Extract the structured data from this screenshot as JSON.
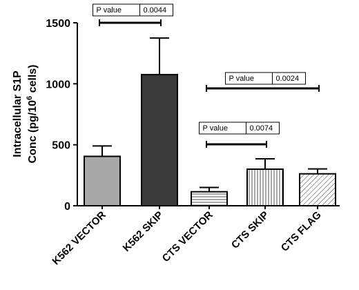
{
  "chart_data": {
    "type": "bar",
    "categories": [
      "K562 VECTOR",
      "K562 SKIP",
      "CTS VECTOR",
      "CTS SKIP",
      "CTS FLAG"
    ],
    "values": [
      405,
      1075,
      115,
      300,
      262
    ],
    "errors": [
      85,
      300,
      35,
      85,
      40
    ],
    "fills": [
      "#a8a8a8",
      "#3a3a3a",
      "hlines",
      "vlines",
      "diag"
    ],
    "ylabel_line1": "Intracellular S1P",
    "ylabel_line2_pre": "Conc (pg/10",
    "ylabel_line2_sup": "6",
    "ylabel_line2_post": " cells)",
    "ylim": [
      0,
      1500
    ],
    "yticks": [
      0,
      500,
      1000,
      1500
    ],
    "comparisons": [
      {
        "from": 0,
        "to": 1,
        "label": "P value",
        "p": "0.0044"
      },
      {
        "from": 2,
        "to": 4,
        "label": "P value",
        "p": "0.0024"
      },
      {
        "from": 2,
        "to": 3,
        "label": "P value",
        "p": "0.0074"
      }
    ]
  }
}
